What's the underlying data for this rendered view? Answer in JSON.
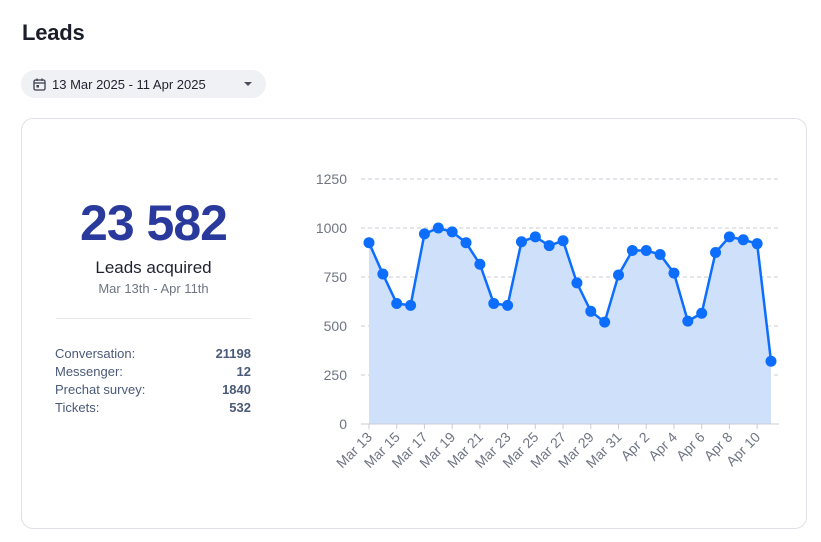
{
  "page": {
    "title": "Leads"
  },
  "date_picker": {
    "label": "13 Mar 2025 - 11 Apr 2025",
    "icon": "calendar-icon",
    "chevron": "chevron-down-icon"
  },
  "summary": {
    "total": "23 582",
    "label": "Leads acquired",
    "range": "Mar 13th - Apr 11th",
    "breakdown": [
      {
        "label": "Conversation:",
        "value": "21198"
      },
      {
        "label": "Messenger:",
        "value": "12"
      },
      {
        "label": "Prechat survey:",
        "value": "1840"
      },
      {
        "label": "Tickets:",
        "value": "532"
      }
    ]
  },
  "colors": {
    "accent": "#2a3a9c",
    "line": "#0d6efd",
    "area": "#cfe0fb"
  },
  "chart_data": {
    "type": "area",
    "x": [
      "Mar 13",
      "Mar 14",
      "Mar 15",
      "Mar 16",
      "Mar 17",
      "Mar 18",
      "Mar 19",
      "Mar 20",
      "Mar 21",
      "Mar 22",
      "Mar 23",
      "Mar 24",
      "Mar 25",
      "Mar 26",
      "Mar 27",
      "Mar 28",
      "Mar 29",
      "Mar 30",
      "Mar 31",
      "Apr 1",
      "Apr 2",
      "Apr 3",
      "Apr 4",
      "Apr 5",
      "Apr 6",
      "Apr 7",
      "Apr 8",
      "Apr 9",
      "Apr 10",
      "Apr 11"
    ],
    "tick_labels": [
      "Mar 13",
      "Mar 15",
      "Mar 17",
      "Mar 19",
      "Mar 21",
      "Mar 23",
      "Mar 25",
      "Mar 27",
      "Mar 29",
      "Mar 31",
      "Apr 2",
      "Apr 4",
      "Apr 6",
      "Apr 8",
      "Apr 10"
    ],
    "values": [
      925,
      765,
      615,
      605,
      970,
      1000,
      980,
      925,
      815,
      615,
      605,
      930,
      955,
      910,
      935,
      720,
      575,
      520,
      760,
      885,
      885,
      865,
      770,
      525,
      565,
      875,
      955,
      940,
      920,
      320
    ],
    "yticks": [
      0,
      250,
      500,
      750,
      1000,
      1250
    ],
    "ylim": [
      0,
      1250
    ],
    "grid": true
  }
}
